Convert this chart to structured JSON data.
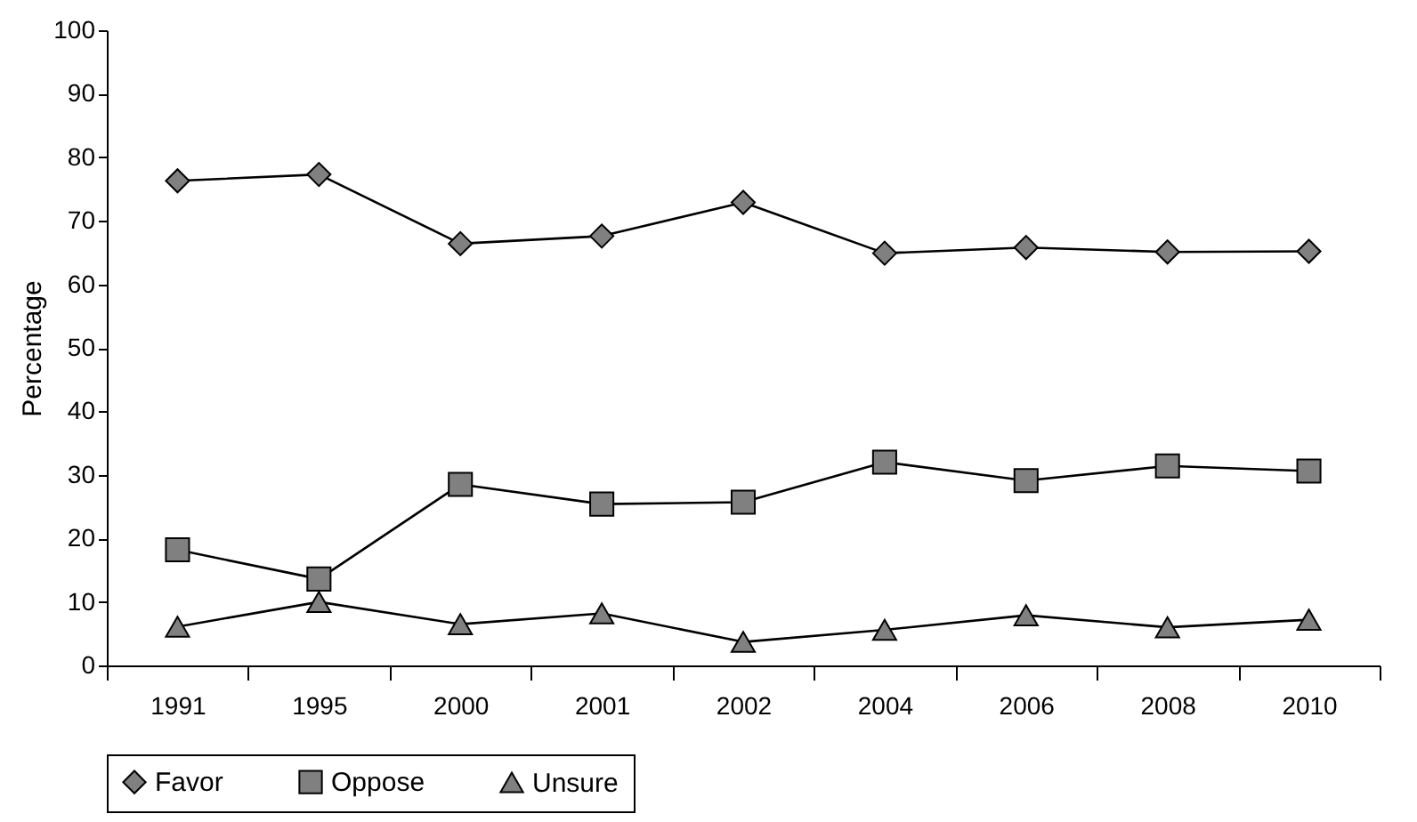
{
  "chart_data": {
    "type": "line",
    "ylabel": "Percentage",
    "categories": [
      "1991",
      "1995",
      "2000",
      "2001",
      "2002",
      "2004",
      "2006",
      "2008",
      "2010"
    ],
    "series": [
      {
        "name": "Favor",
        "color": "#808080",
        "marker": "diamond",
        "values": [
          76.3,
          77.3,
          66.4,
          67.6,
          72.9,
          64.9,
          65.8,
          65.1,
          65.2
        ]
      },
      {
        "name": "Oppose",
        "color": "#808080",
        "marker": "square",
        "values": [
          18.2,
          13.6,
          28.5,
          25.4,
          25.7,
          32.0,
          29.1,
          31.4,
          30.6
        ]
      },
      {
        "name": "Unsure",
        "color": "#808080",
        "marker": "triangle",
        "values": [
          6.1,
          10.0,
          6.5,
          8.2,
          3.7,
          5.6,
          7.9,
          6.0,
          7.2
        ]
      }
    ],
    "ylim": [
      0,
      100
    ],
    "yticks": [
      0,
      10,
      20,
      30,
      40,
      50,
      60,
      70,
      80,
      90,
      100
    ],
    "grid": false,
    "legend": "bottom",
    "line_style": "solid"
  }
}
